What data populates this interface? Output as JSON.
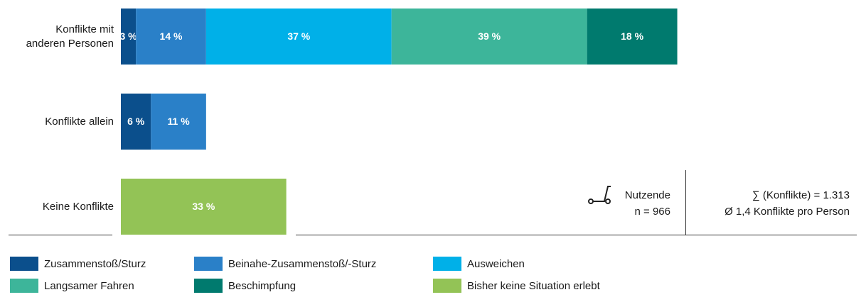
{
  "chart_data": {
    "type": "stacked-barh",
    "categories": [
      "Konflikte mit anderen Personen",
      "Konflikte allein",
      "Keine Konflikte"
    ],
    "series": [
      {
        "name": "Zusammenstoß/Sturz",
        "color": "#0b4f8c",
        "values": [
          3,
          6,
          null
        ],
        "value_labels": [
          "3 %",
          "6 %",
          null
        ]
      },
      {
        "name": "Beinahe-Zusammenstoß/-Sturz",
        "color": "#2a80c8",
        "values": [
          14,
          11,
          null
        ],
        "value_labels": [
          "14 %",
          "11 %",
          null
        ]
      },
      {
        "name": "Ausweichen",
        "color": "#00b0e8",
        "values": [
          37,
          null,
          null
        ],
        "value_labels": [
          "37 %",
          null,
          null
        ]
      },
      {
        "name": "Langsamer Fahren",
        "color": "#3db59a",
        "values": [
          39,
          null,
          null
        ],
        "value_labels": [
          "39 %",
          null,
          null
        ]
      },
      {
        "name": "Beschimpfung",
        "color": "#007a6e",
        "values": [
          18,
          null,
          null
        ],
        "value_labels": [
          "18 %",
          null,
          null
        ]
      },
      {
        "name": "Bisher keine Situation erlebt",
        "color": "#93c356",
        "values": [
          null,
          null,
          33
        ],
        "value_labels": [
          null,
          null,
          "33 %"
        ]
      }
    ],
    "annotations": [
      "Nutzende",
      "n = 966",
      "∑ (Konflikte) = 1.313",
      "Ø 1,4 Konflikte pro Person"
    ]
  }
}
